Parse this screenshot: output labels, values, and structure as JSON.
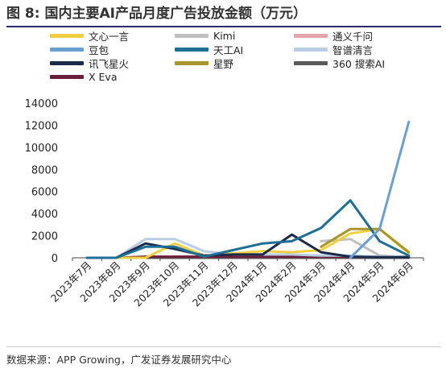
{
  "figure": {
    "title": "图 8: 国内主要AI产品月度广告投放金额（万元）",
    "source": "数据来源：APP Growing，广发证券发展研究中心"
  },
  "chart_data": {
    "type": "line",
    "categories": [
      "2023年7月",
      "2023年8月",
      "2023年9月",
      "2023年10月",
      "2023年11月",
      "2023年12月",
      "2024年1月",
      "2024年2月",
      "2024年3月",
      "2024年4月",
      "2024年5月",
      "2024年6月"
    ],
    "ylim": [
      0,
      14000
    ],
    "yticks": [
      0,
      2000,
      4000,
      6000,
      8000,
      10000,
      12000,
      14000
    ],
    "grid": false,
    "legend_position": "top",
    "series": [
      {
        "name": "文心一言",
        "color": "#f2cf3e",
        "values": [
          0,
          0,
          0,
          1300,
          200,
          400,
          600,
          500,
          700,
          2200,
          2600,
          400
        ]
      },
      {
        "name": "Kimi",
        "color": "#bfbfbf",
        "values": [
          null,
          null,
          null,
          null,
          null,
          null,
          null,
          null,
          1500,
          1700,
          200,
          50
        ]
      },
      {
        "name": "通义千问",
        "color": "#e3a5a8",
        "values": [
          0,
          0,
          0,
          100,
          100,
          100,
          100,
          100,
          100,
          100,
          100,
          100
        ]
      },
      {
        "name": "豆包",
        "color": "#6b9fd4",
        "values": [
          null,
          null,
          null,
          null,
          null,
          null,
          null,
          null,
          null,
          0,
          2600,
          12300
        ]
      },
      {
        "name": "天工AI",
        "color": "#1f6e96",
        "values": [
          0,
          0,
          1000,
          1000,
          100,
          700,
          1300,
          1500,
          2700,
          5200,
          1500,
          200
        ]
      },
      {
        "name": "智谱清言",
        "color": "#b9cde4",
        "values": [
          0,
          0,
          1700,
          1700,
          600,
          300,
          300,
          300,
          200,
          200,
          100,
          100
        ]
      },
      {
        "name": "讯飞星火",
        "color": "#1b2a4a",
        "values": [
          0,
          0,
          1300,
          800,
          200,
          300,
          300,
          2100,
          500,
          100,
          50,
          50
        ]
      },
      {
        "name": "星野",
        "color": "#a8962a",
        "values": [
          null,
          null,
          null,
          null,
          null,
          null,
          null,
          null,
          1000,
          2600,
          2600,
          500
        ]
      },
      {
        "name": "360 搜索AI",
        "color": "#5a5a5a",
        "values": [
          0,
          0,
          0,
          0,
          0,
          0,
          0,
          0,
          0,
          0,
          0,
          0
        ]
      },
      {
        "name": "X Eva",
        "color": "#6b1f3a",
        "values": [
          0,
          0,
          100,
          100,
          100,
          100,
          100,
          100,
          100,
          100,
          100,
          100
        ]
      }
    ]
  }
}
